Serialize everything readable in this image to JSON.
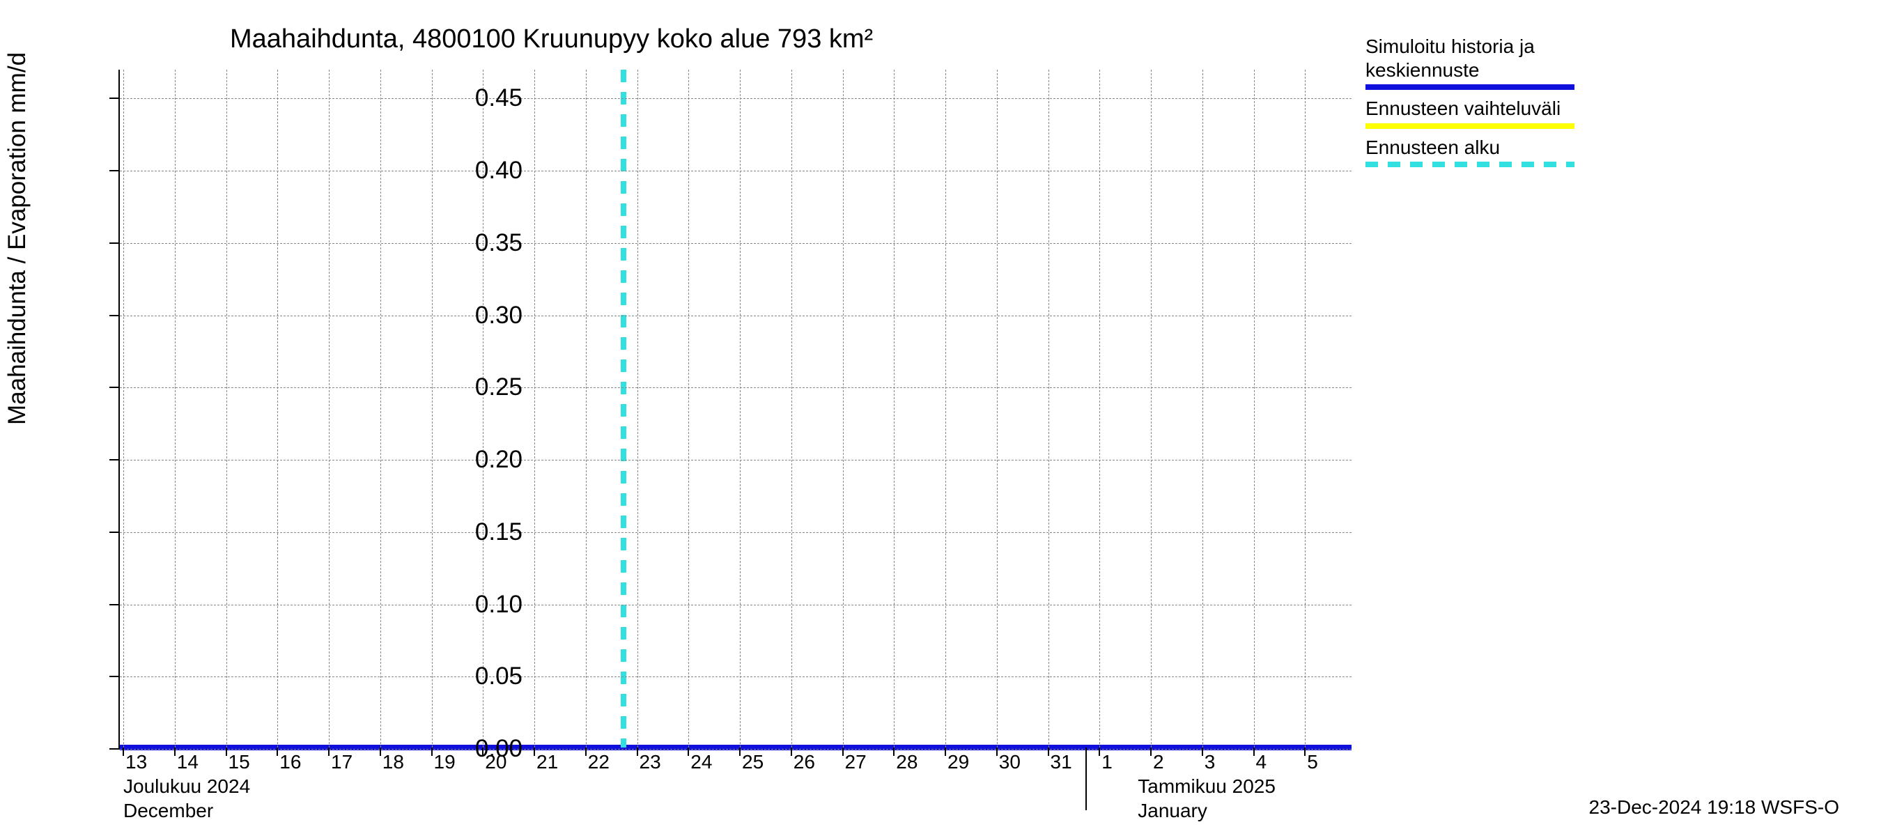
{
  "chart": {
    "type": "line",
    "title": "Maahaihdunta, 4800100 Kruunupyy koko alue 793 km²",
    "y_axis_label": "Maahaihdunta / Evaporation   mm/d",
    "ylim": [
      0,
      0.47
    ],
    "y_ticks": [
      0.0,
      0.05,
      0.1,
      0.15,
      0.2,
      0.25,
      0.3,
      0.35,
      0.4,
      0.45
    ],
    "y_tick_labels": [
      "0.00",
      "0.05",
      "0.10",
      "0.15",
      "0.20",
      "0.25",
      "0.30",
      "0.35",
      "0.40",
      "0.45"
    ],
    "x_days": [
      13,
      14,
      15,
      16,
      17,
      18,
      19,
      20,
      21,
      22,
      23,
      24,
      25,
      26,
      27,
      28,
      29,
      30,
      31,
      1,
      2,
      3,
      4,
      5
    ],
    "x_labels": [
      "13",
      "14",
      "15",
      "16",
      "17",
      "18",
      "19",
      "20",
      "21",
      "22",
      "23",
      "24",
      "25",
      "26",
      "27",
      "28",
      "29",
      "30",
      "31",
      "1",
      "2",
      "3",
      "4",
      "5"
    ],
    "month1_label": "Joulukuu  2024",
    "month1_label2": "December",
    "month2_label": "Tammikuu  2025",
    "month2_label2": "January",
    "month_divider_idx": 19,
    "forecast_start_idx": 9.8,
    "data_value": 0.0,
    "background_color": "#ffffff",
    "grid_color": "#888888",
    "colors": {
      "main_line": "#1010dd",
      "range_fill": "#ffff00",
      "forecast_marker": "#33e0e0"
    },
    "title_fontsize": 38,
    "label_fontsize": 35,
    "tick_fontsize": 28
  },
  "legend": {
    "items": [
      {
        "label1": "Simuloitu historia ja",
        "label2": "keskiennuste",
        "color": "#1010dd",
        "style": "solid"
      },
      {
        "label1": "Ennusteen vaihteluväli",
        "label2": "",
        "color": "#ffff00",
        "style": "solid"
      },
      {
        "label1": "Ennusteen alku",
        "label2": "",
        "color": "#33e0e0",
        "style": "dashed"
      }
    ]
  },
  "timestamp": "23-Dec-2024 19:18 WSFS-O"
}
